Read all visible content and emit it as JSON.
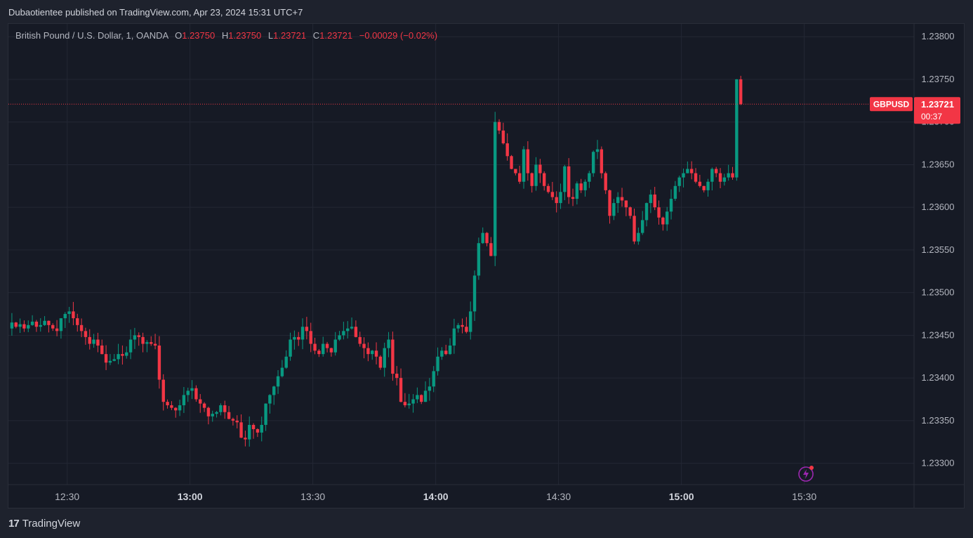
{
  "header": {
    "published": "Dubaotientee published on TradingView.com, Apr 23, 2024 15:31 UTC+7"
  },
  "legend": {
    "symbol_text": "British Pound / U.S. Dollar, 1, OANDA",
    "o_label": "O",
    "o_value": "1.23750",
    "h_label": "H",
    "h_value": "1.23750",
    "l_label": "L",
    "l_value": "1.23721",
    "c_label": "C",
    "c_value": "1.23721",
    "change": "−0.00029 (−0.02%)"
  },
  "price_tag": {
    "symbol": "GBPUSD",
    "price": "1.23721",
    "countdown": "00:37"
  },
  "footer": {
    "brand": "TradingView"
  },
  "colors": {
    "up": "#089981",
    "down": "#f23645",
    "background": "#161a25",
    "grid": "#232734",
    "text": "#b2b5be"
  },
  "chart_data": {
    "type": "candlestick",
    "instrument": "GBPUSD",
    "timeframe": "1",
    "x_ticks": [
      "12:30",
      "13:00",
      "13:30",
      "14:00",
      "14:30",
      "15:00",
      "15:30"
    ],
    "x_ticks_bold": [
      "13:00",
      "14:00",
      "15:00"
    ],
    "y_ticks": [
      "1.23800",
      "1.23750",
      "1.23700",
      "1.23650",
      "1.23600",
      "1.23550",
      "1.23500",
      "1.23450",
      "1.23400",
      "1.23350",
      "1.23300"
    ],
    "ylim": [
      1.23275,
      1.23815
    ],
    "time_start": "12:16",
    "last_price": 1.23721,
    "close_path": [
      1.23458,
      1.23465,
      1.2346,
      1.23463,
      1.23458,
      1.23462,
      1.23466,
      1.2346,
      1.23462,
      1.23467,
      1.23462,
      1.23458,
      1.23455,
      1.2347,
      1.23475,
      1.23478,
      1.2347,
      1.23462,
      1.23455,
      1.23448,
      1.2344,
      1.23445,
      1.23438,
      1.23428,
      1.23418,
      1.2342,
      1.23422,
      1.23428,
      1.23426,
      1.2343,
      1.23445,
      1.2345,
      1.23448,
      1.2344,
      1.23442,
      1.2344,
      1.23438,
      1.23398,
      1.23372,
      1.23368,
      1.23365,
      1.23362,
      1.23368,
      1.2338,
      1.23385,
      1.23388,
      1.23375,
      1.2337,
      1.23365,
      1.23355,
      1.23358,
      1.2336,
      1.23368,
      1.2336,
      1.23352,
      1.2335,
      1.23348,
      1.2333,
      1.23328,
      1.23345,
      1.2334,
      1.23336,
      1.23345,
      1.2337,
      1.2338,
      1.2339,
      1.23402,
      1.23412,
      1.23425,
      1.23445,
      1.23448,
      1.23445,
      1.2346,
      1.23455,
      1.2344,
      1.23432,
      1.23428,
      1.2344,
      1.23435,
      1.2343,
      1.23445,
      1.2345,
      1.23455,
      1.23458,
      1.2346,
      1.23448,
      1.2344,
      1.23435,
      1.23428,
      1.23432,
      1.23425,
      1.23412,
      1.23435,
      1.23445,
      1.23405,
      1.234,
      1.23372,
      1.23368,
      1.2337,
      1.23375,
      1.2338,
      1.23372,
      1.23385,
      1.2339,
      1.23408,
      1.23425,
      1.23432,
      1.23428,
      1.23438,
      1.23458,
      1.23462,
      1.2346,
      1.23454,
      1.23478,
      1.2352,
      1.23558,
      1.2357,
      1.23558,
      1.23543,
      1.237,
      1.2369,
      1.23675,
      1.2366,
      1.23645,
      1.2364,
      1.2363,
      1.23668,
      1.2364,
      1.23625,
      1.2365,
      1.2364,
      1.23625,
      1.23618,
      1.23612,
      1.23605,
      1.23618,
      1.23648,
      1.23612,
      1.2361,
      1.23628,
      1.2362,
      1.2363,
      1.2364,
      1.23665,
      1.23668,
      1.2364,
      1.2362,
      1.2359,
      1.23605,
      1.23612,
      1.23608,
      1.236,
      1.2359,
      1.2356,
      1.2357,
      1.23585,
      1.23605,
      1.23615,
      1.236,
      1.23588,
      1.2358,
      1.23595,
      1.2361,
      1.23625,
      1.23635,
      1.2364,
      1.23645,
      1.2364,
      1.2363,
      1.23625,
      1.2362,
      1.2363,
      1.23645,
      1.2364,
      1.2363,
      1.23635,
      1.2364,
      1.23635,
      1.2375,
      1.23721
    ]
  }
}
